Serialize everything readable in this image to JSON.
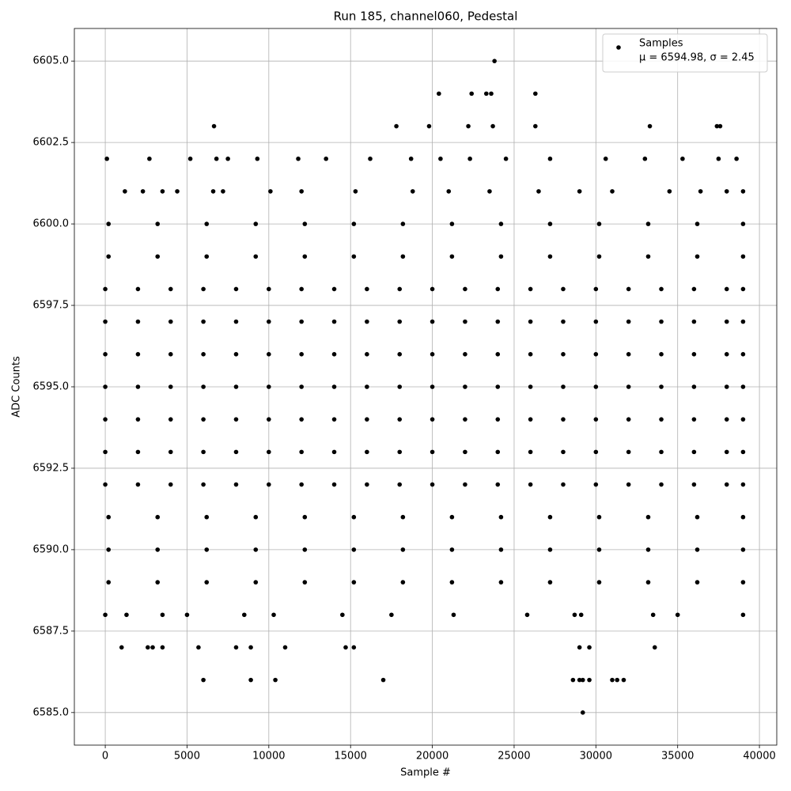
{
  "chart_data": {
    "type": "scatter",
    "title": "Run 185, channel060, Pedestal",
    "x_label": "Sample #",
    "y_label": "ADC Counts",
    "legend_position": "upper right",
    "legend_annotation": "μ = 6594.98, σ = 2.45",
    "grid": true,
    "xlim": [
      -1890,
      41060
    ],
    "ylim": [
      6584,
      6606
    ],
    "xticks": [
      0,
      5000,
      10000,
      15000,
      20000,
      25000,
      30000,
      35000,
      40000
    ],
    "yticks": [
      {
        "value": 6585,
        "label": "6585.0"
      },
      {
        "value": 6587.5,
        "label": "6587.5"
      },
      {
        "value": 6590,
        "label": "6590.0"
      },
      {
        "value": 6592.5,
        "label": "6592.5"
      },
      {
        "value": 6595,
        "label": "6595.0"
      },
      {
        "value": 6597.5,
        "label": "6597.5"
      },
      {
        "value": 6600,
        "label": "6600.0"
      },
      {
        "value": 6602.5,
        "label": "6602.5"
      },
      {
        "value": 6605,
        "label": "6605.0"
      }
    ],
    "x": [
      100,
      2700,
      5200,
      6800,
      7500,
      9300,
      11800,
      13500,
      16200,
      18700,
      20500,
      22300,
      24500,
      27200,
      30600,
      33000,
      35300,
      37500,
      38600,
      1200,
      2300,
      3500,
      4400,
      6600,
      7200,
      10100,
      12000,
      15300,
      18800,
      21000,
      23500,
      26500,
      29000,
      31000,
      34500,
      36400,
      38000,
      39000,
      200,
      3200,
      6200,
      9200,
      12200,
      15200,
      18200,
      21200,
      24200,
      27200,
      30200,
      33200,
      36200,
      39000,
      200,
      3200,
      6200,
      9200,
      12200,
      15200,
      18200,
      21200,
      24200,
      27200,
      30200,
      33200,
      36200,
      39000,
      0,
      2000,
      4000,
      6000,
      8000,
      10000,
      12000,
      14000,
      16000,
      18000,
      20000,
      22000,
      24000,
      26000,
      28000,
      30000,
      32000,
      34000,
      36000,
      38000,
      39000,
      0,
      2000,
      4000,
      6000,
      8000,
      10000,
      12000,
      14000,
      16000,
      18000,
      20000,
      22000,
      24000,
      26000,
      28000,
      30000,
      32000,
      34000,
      36000,
      38000,
      39000,
      0,
      2000,
      4000,
      6000,
      8000,
      10000,
      12000,
      14000,
      16000,
      18000,
      20000,
      22000,
      24000,
      26000,
      28000,
      30000,
      32000,
      34000,
      36000,
      38000,
      39000,
      0,
      2000,
      4000,
      6000,
      8000,
      10000,
      12000,
      14000,
      16000,
      18000,
      20000,
      22000,
      24000,
      26000,
      28000,
      30000,
      32000,
      34000,
      36000,
      38000,
      39000,
      0,
      2000,
      4000,
      6000,
      8000,
      10000,
      12000,
      14000,
      16000,
      18000,
      20000,
      22000,
      24000,
      26000,
      28000,
      30000,
      32000,
      34000,
      36000,
      38000,
      39000,
      0,
      2000,
      4000,
      6000,
      8000,
      10000,
      12000,
      14000,
      16000,
      18000,
      20000,
      22000,
      24000,
      26000,
      28000,
      30000,
      32000,
      34000,
      36000,
      38000,
      39000,
      0,
      2000,
      4000,
      6000,
      8000,
      10000,
      12000,
      14000,
      16000,
      18000,
      20000,
      22000,
      24000,
      26000,
      28000,
      30000,
      32000,
      34000,
      36000,
      38000,
      39000,
      200,
      3200,
      6200,
      9200,
      12200,
      15200,
      18200,
      21200,
      24200,
      27200,
      30200,
      33200,
      36200,
      39000,
      200,
      3200,
      6200,
      9200,
      12200,
      15200,
      18200,
      21200,
      24200,
      27200,
      30200,
      33200,
      36200,
      39000,
      200,
      3200,
      6200,
      9200,
      12200,
      15200,
      18200,
      21200,
      24200,
      27200,
      30200,
      33200,
      36200,
      39000,
      0,
      1300,
      3500,
      5000,
      8500,
      10300,
      14500,
      17500,
      21300,
      25800,
      28700,
      29100,
      33500,
      35000,
      39000,
      6650,
      17800,
      19800,
      22200,
      23700,
      26300,
      33300,
      37400,
      37600,
      20400,
      22400,
      23300,
      23600,
      26300,
      23800,
      1000,
      2600,
      2900,
      3500,
      5700,
      8000,
      8900,
      11000,
      14700,
      15200,
      29000,
      29600,
      33600,
      6000,
      8900,
      10400,
      17000,
      28600,
      29000,
      29200,
      29600,
      31000,
      31300,
      31700,
      29200
    ],
    "series": [
      {
        "name": "Samples",
        "color": "#000000",
        "values": [
          6602,
          6602,
          6602,
          6602,
          6602,
          6602,
          6602,
          6602,
          6602,
          6602,
          6602,
          6602,
          6602,
          6602,
          6602,
          6602,
          6602,
          6602,
          6602,
          6601,
          6601,
          6601,
          6601,
          6601,
          6601,
          6601,
          6601,
          6601,
          6601,
          6601,
          6601,
          6601,
          6601,
          6601,
          6601,
          6601,
          6601,
          6601,
          6600,
          6600,
          6600,
          6600,
          6600,
          6600,
          6600,
          6600,
          6600,
          6600,
          6600,
          6600,
          6600,
          6600,
          6599,
          6599,
          6599,
          6599,
          6599,
          6599,
          6599,
          6599,
          6599,
          6599,
          6599,
          6599,
          6599,
          6599,
          6598,
          6598,
          6598,
          6598,
          6598,
          6598,
          6598,
          6598,
          6598,
          6598,
          6598,
          6598,
          6598,
          6598,
          6598,
          6598,
          6598,
          6598,
          6598,
          6598,
          6598,
          6597,
          6597,
          6597,
          6597,
          6597,
          6597,
          6597,
          6597,
          6597,
          6597,
          6597,
          6597,
          6597,
          6597,
          6597,
          6597,
          6597,
          6597,
          6597,
          6597,
          6597,
          6596,
          6596,
          6596,
          6596,
          6596,
          6596,
          6596,
          6596,
          6596,
          6596,
          6596,
          6596,
          6596,
          6596,
          6596,
          6596,
          6596,
          6596,
          6596,
          6596,
          6596,
          6595,
          6595,
          6595,
          6595,
          6595,
          6595,
          6595,
          6595,
          6595,
          6595,
          6595,
          6595,
          6595,
          6595,
          6595,
          6595,
          6595,
          6595,
          6595,
          6595,
          6595,
          6594,
          6594,
          6594,
          6594,
          6594,
          6594,
          6594,
          6594,
          6594,
          6594,
          6594,
          6594,
          6594,
          6594,
          6594,
          6594,
          6594,
          6594,
          6594,
          6594,
          6594,
          6593,
          6593,
          6593,
          6593,
          6593,
          6593,
          6593,
          6593,
          6593,
          6593,
          6593,
          6593,
          6593,
          6593,
          6593,
          6593,
          6593,
          6593,
          6593,
          6593,
          6593,
          6592,
          6592,
          6592,
          6592,
          6592,
          6592,
          6592,
          6592,
          6592,
          6592,
          6592,
          6592,
          6592,
          6592,
          6592,
          6592,
          6592,
          6592,
          6592,
          6592,
          6592,
          6591,
          6591,
          6591,
          6591,
          6591,
          6591,
          6591,
          6591,
          6591,
          6591,
          6591,
          6591,
          6591,
          6591,
          6590,
          6590,
          6590,
          6590,
          6590,
          6590,
          6590,
          6590,
          6590,
          6590,
          6590,
          6590,
          6590,
          6590,
          6589,
          6589,
          6589,
          6589,
          6589,
          6589,
          6589,
          6589,
          6589,
          6589,
          6589,
          6589,
          6589,
          6589,
          6588,
          6588,
          6588,
          6588,
          6588,
          6588,
          6588,
          6588,
          6588,
          6588,
          6588,
          6588,
          6588,
          6588,
          6588,
          6603,
          6603,
          6603,
          6603,
          6603,
          6603,
          6603,
          6603,
          6603,
          6604,
          6604,
          6604,
          6604,
          6604,
          6605,
          6587,
          6587,
          6587,
          6587,
          6587,
          6587,
          6587,
          6587,
          6587,
          6587,
          6587,
          6587,
          6587,
          6586,
          6586,
          6586,
          6586,
          6586,
          6586,
          6586,
          6586,
          6586,
          6586,
          6586,
          6585
        ]
      }
    ]
  }
}
